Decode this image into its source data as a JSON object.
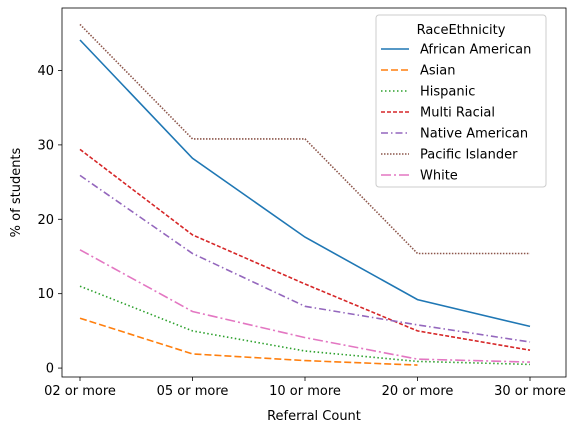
{
  "chart_data": {
    "type": "line",
    "title": "",
    "xlabel": "Referral Count",
    "ylabel": "% of students",
    "categories": [
      "02 or more",
      "05 or more",
      "10 or more",
      "20 or more",
      "30 or more"
    ],
    "yticks": [
      0,
      10,
      20,
      30,
      40
    ],
    "ylim": [
      -1.2,
      48.4
    ],
    "grid": false,
    "legend": {
      "title": "RaceEthnicity",
      "placement": "top-right"
    },
    "series": [
      {
        "name": "African American",
        "color": "#1f77b4",
        "dash": "solid",
        "values": [
          44.1,
          28.2,
          17.6,
          9.2,
          5.6
        ]
      },
      {
        "name": "Asian",
        "color": "#ff7f0e",
        "dash": "dashed",
        "values": [
          6.7,
          1.9,
          1.0,
          0.4,
          null
        ]
      },
      {
        "name": "Hispanic",
        "color": "#2ca02c",
        "dash": "dotted",
        "values": [
          11.0,
          5.0,
          2.3,
          0.9,
          0.5
        ]
      },
      {
        "name": "Multi Racial",
        "color": "#d62728",
        "dash": "densedash",
        "values": [
          29.4,
          17.9,
          11.3,
          5.0,
          2.4
        ]
      },
      {
        "name": "Native American",
        "color": "#9467bd",
        "dash": "dashdot",
        "values": [
          25.9,
          15.4,
          8.3,
          5.8,
          3.5
        ]
      },
      {
        "name": "Pacific Islander",
        "color": "#8c564b",
        "dash": "densedot",
        "values": [
          46.2,
          30.8,
          30.8,
          15.4,
          15.4
        ]
      },
      {
        "name": "White",
        "color": "#e377c2",
        "dash": "longdashdot",
        "values": [
          15.9,
          7.6,
          4.1,
          1.2,
          0.8
        ]
      }
    ]
  }
}
